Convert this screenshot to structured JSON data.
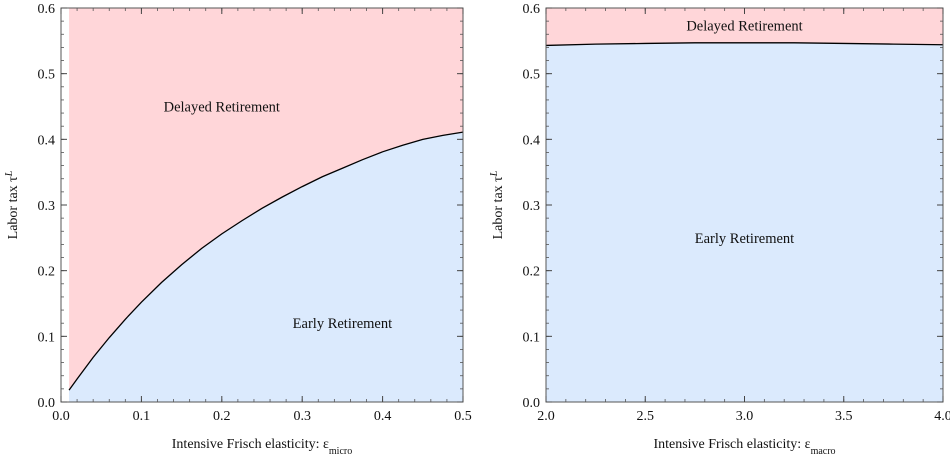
{
  "chart_data": [
    {
      "type": "area",
      "xlabel": "Intensive Frisch elasticity: ε",
      "xlabel_sub": "micro",
      "ylabel": "Labor tax τ",
      "ylabel_sup": "L",
      "xlim": [
        0.0,
        0.5
      ],
      "ylim": [
        0.0,
        0.6
      ],
      "x_ticks": [
        0.0,
        0.1,
        0.2,
        0.3,
        0.4,
        0.5
      ],
      "x_tick_labels": [
        "0.0",
        "0.1",
        "0.2",
        "0.3",
        "0.4",
        "0.5"
      ],
      "y_ticks": [
        0.0,
        0.1,
        0.2,
        0.3,
        0.4,
        0.5,
        0.6
      ],
      "y_tick_labels": [
        "0.0",
        "0.1",
        "0.2",
        "0.3",
        "0.4",
        "0.5",
        "0.6"
      ],
      "regions": [
        {
          "label": "Delayed Retirement",
          "color": "#ffd6d9",
          "position": "above",
          "label_at": [
            0.2,
            0.45
          ]
        },
        {
          "label": "Early Retirement",
          "color": "#dbeafd",
          "position": "below",
          "label_at": [
            0.35,
            0.12
          ]
        }
      ],
      "fill_x_range": [
        0.01,
        0.5
      ],
      "boundary": {
        "color": "#000000",
        "x": [
          0.01,
          0.02,
          0.04,
          0.06,
          0.08,
          0.1,
          0.125,
          0.15,
          0.175,
          0.2,
          0.225,
          0.25,
          0.275,
          0.3,
          0.325,
          0.35,
          0.375,
          0.4,
          0.425,
          0.45,
          0.475,
          0.5
        ],
        "y": [
          0.018,
          0.035,
          0.068,
          0.098,
          0.126,
          0.152,
          0.182,
          0.209,
          0.234,
          0.256,
          0.276,
          0.295,
          0.312,
          0.328,
          0.343,
          0.356,
          0.369,
          0.381,
          0.391,
          0.4,
          0.406,
          0.411
        ]
      }
    },
    {
      "type": "area",
      "xlabel": "Intensive Frisch elasticity: ε",
      "xlabel_sub": "macro",
      "ylabel": "Labor tax τ",
      "ylabel_sup": "L",
      "xlim": [
        2.0,
        4.0
      ],
      "ylim": [
        0.0,
        0.6
      ],
      "x_ticks": [
        2.0,
        2.5,
        3.0,
        3.5,
        4.0
      ],
      "x_tick_labels": [
        "2.0",
        "2.5",
        "3.0",
        "3.5",
        "4.0"
      ],
      "y_ticks": [
        0.0,
        0.1,
        0.2,
        0.3,
        0.4,
        0.5,
        0.6
      ],
      "y_tick_labels": [
        "0.0",
        "0.1",
        "0.2",
        "0.3",
        "0.4",
        "0.5",
        "0.6"
      ],
      "regions": [
        {
          "label": "Delayed Retirement",
          "color": "#ffd6d9",
          "position": "above",
          "label_at": [
            3.0,
            0.573
          ]
        },
        {
          "label": "Early Retirement",
          "color": "#dbeafd",
          "position": "below",
          "label_at": [
            3.0,
            0.25
          ]
        }
      ],
      "fill_x_range": [
        2.0,
        4.0
      ],
      "boundary": {
        "color": "#000000",
        "x": [
          2.0,
          2.25,
          2.5,
          2.75,
          3.0,
          3.25,
          3.5,
          3.75,
          4.0
        ],
        "y": [
          0.543,
          0.545,
          0.546,
          0.547,
          0.547,
          0.547,
          0.546,
          0.545,
          0.544
        ]
      }
    }
  ]
}
